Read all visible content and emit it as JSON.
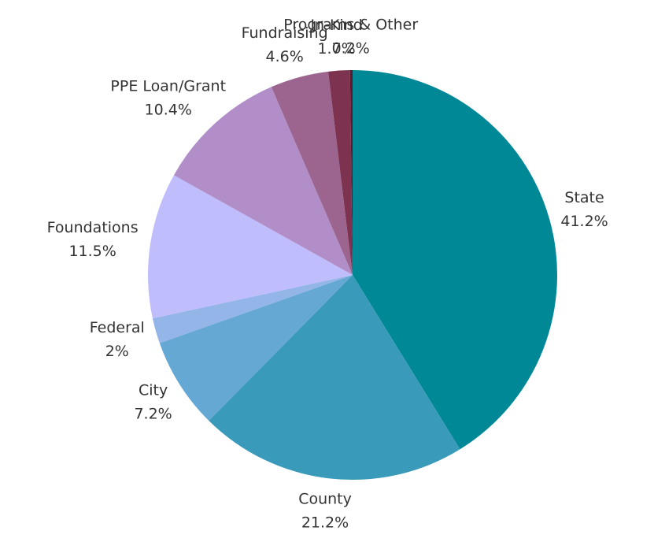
{
  "chart_data": {
    "type": "pie",
    "categories": [
      "State",
      "County",
      "City",
      "Federal",
      "Foundations",
      "PPE Loan/Grant",
      "Fundraising",
      "In-Kind",
      "Programs & Other"
    ],
    "values": [
      41.2,
      21.2,
      7.2,
      2,
      11.5,
      10.4,
      4.6,
      1.7,
      0.2
    ],
    "value_labels": [
      "41.2%",
      "21.2%",
      "7.2%",
      "2%",
      "11.5%",
      "10.4%",
      "4.6%",
      "1.7%",
      "0.2%"
    ],
    "colors": [
      "#008896",
      "#3a9aba",
      "#66a8d4",
      "#93b5e8",
      "#c0bdfd",
      "#b18ec8",
      "#9c6590",
      "#7d3350",
      "#5a1a2a"
    ]
  }
}
